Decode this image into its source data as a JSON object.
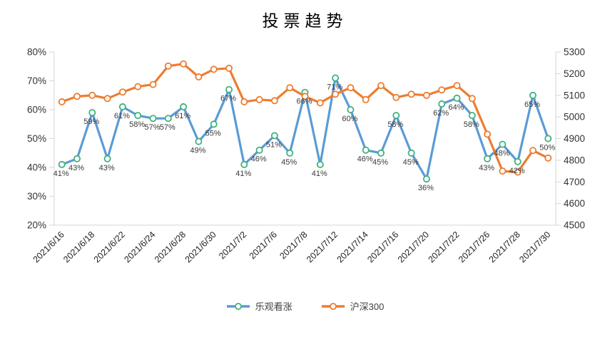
{
  "title": "投票趋势",
  "legend": {
    "items": [
      {
        "label": "乐观看涨",
        "color": "#5B9BD5",
        "ring": "#3FB27C"
      },
      {
        "label": "沪深300",
        "color": "#ED7D31",
        "ring": "#ED7D31"
      }
    ]
  },
  "chart_data": {
    "type": "line",
    "title": "投票趋势",
    "x_tick_labels": [
      "2021/6/16",
      "2021/6/18",
      "2021/6/22",
      "2021/6/24",
      "2021/6/28",
      "2021/6/30",
      "2021/7/2",
      "2021/7/6",
      "2021/7/8",
      "2021/7/12",
      "2021/7/14",
      "2021/7/16",
      "2021/7/20",
      "2021/7/22",
      "2021/7/26",
      "2021/7/28",
      "2021/7/30"
    ],
    "points_per_tick": 2,
    "num_points": 33,
    "series": [
      {
        "name": "乐观看涨",
        "axis": "left",
        "color": "#5B9BD5",
        "marker_ring": "#3FB27C",
        "show_labels": true,
        "label_suffix": "%",
        "values": [
          41,
          43,
          59,
          43,
          61,
          58,
          57,
          57,
          61,
          49,
          55,
          67,
          41,
          46,
          51,
          45,
          66,
          41,
          71,
          60,
          46,
          45,
          58,
          45,
          36,
          62,
          64,
          58,
          43,
          48,
          42,
          65,
          50
        ]
      },
      {
        "name": "沪深300",
        "axis": "right",
        "color": "#ED7D31",
        "marker_ring": "#ED7D31",
        "show_labels": false,
        "label_suffix": "",
        "values": [
          5070,
          5095,
          5100,
          5085,
          5115,
          5140,
          5150,
          5235,
          5245,
          5185,
          5220,
          5225,
          5070,
          5080,
          5075,
          5135,
          5095,
          5065,
          5105,
          5135,
          5080,
          5145,
          5090,
          5105,
          5100,
          5125,
          5145,
          5085,
          4920,
          4750,
          4745,
          4845,
          4810
        ]
      }
    ],
    "left_axis": {
      "min": 20,
      "max": 80,
      "step": 10,
      "tick_labels": [
        "80%",
        "70%",
        "60%",
        "50%",
        "40%",
        "30%",
        "20%"
      ]
    },
    "right_axis": {
      "min": 4500,
      "max": 5300,
      "step": 100,
      "tick_labels": [
        "5300",
        "5200",
        "5100",
        "5000",
        "4900",
        "4800",
        "4700",
        "4600",
        "4500"
      ]
    },
    "grid": false,
    "legend_position": "bottom",
    "axis_line_color": "#D6D6D6",
    "tick_label_color": "#333333",
    "data_label_color": "#3a3a3a"
  }
}
